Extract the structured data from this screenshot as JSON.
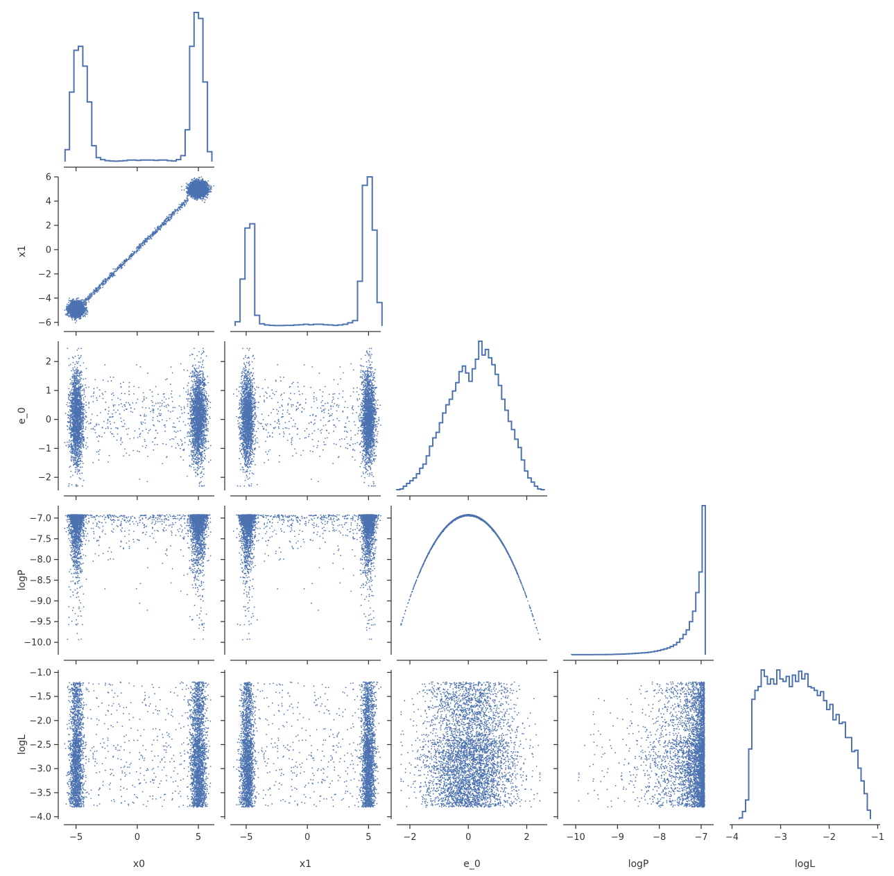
{
  "chart_data": {
    "type": "corner-plot",
    "variables": [
      "x0",
      "x1",
      "e_0",
      "logP",
      "logL"
    ],
    "color": "#4c72b0",
    "axes": {
      "x0": {
        "range": [
          -6.0,
          6.3
        ],
        "ticks": [
          -5,
          0,
          5
        ],
        "tick_labels": [
          "−5",
          "0",
          "5"
        ]
      },
      "x1": {
        "range": [
          -6.3,
          6.0
        ],
        "ticks": [
          -5,
          0,
          5
        ],
        "tick_labels": [
          "−5",
          "0",
          "5"
        ],
        "y_ticks": [
          -6,
          -4,
          -2,
          0,
          2,
          4,
          6
        ],
        "y_tick_labels": [
          "−6",
          "−4",
          "−2",
          "0",
          "2",
          "4",
          "6"
        ]
      },
      "e_0": {
        "range": [
          -2.45,
          2.7
        ],
        "ticks": [
          -2,
          0,
          2
        ],
        "tick_labels": [
          "−2",
          "0",
          "2"
        ],
        "y_ticks": [
          -2,
          -1,
          0,
          1,
          2
        ],
        "y_tick_labels": [
          "−2",
          "−1",
          "0",
          "1",
          "2"
        ]
      },
      "logP": {
        "range": [
          -10.3,
          -6.7
        ],
        "ticks": [
          -10,
          -9,
          -8,
          -7
        ],
        "tick_labels": [
          "−10",
          "−9",
          "−8",
          "−7"
        ],
        "y_ticks": [
          -10.0,
          -9.5,
          -9.0,
          -8.5,
          -8.0,
          -7.5,
          -7.0
        ],
        "y_tick_labels": [
          "−10.0",
          "−9.5",
          "−9.0",
          "−8.5",
          "−8.0",
          "−7.5",
          "−7.0"
        ]
      },
      "logL": {
        "range": [
          -4.05,
          -0.95
        ],
        "ticks": [
          -4,
          -3,
          -2,
          -1
        ],
        "tick_labels": [
          "−4",
          "−3",
          "−2",
          "−1"
        ],
        "y_ticks": [
          -4.0,
          -3.5,
          -3.0,
          -2.5,
          -2.0,
          -1.5,
          -1.0
        ],
        "y_tick_labels": [
          "−4.0",
          "−3.5",
          "−3.0",
          "−2.5",
          "−2.0",
          "−1.5",
          "−1.0"
        ]
      }
    },
    "histograms": {
      "x0": {
        "bin_edges": [
          -5.9,
          6.1
        ],
        "counts": [
          6,
          35,
          56,
          58,
          48,
          30,
          8,
          2,
          1,
          0.5,
          0.3,
          0.2,
          0.3,
          0.5,
          0.8,
          0.8,
          0.6,
          0.8,
          0.8,
          0.8,
          0.6,
          0.8,
          0.8,
          0.5,
          0.3,
          1,
          3,
          16,
          58,
          75,
          72,
          40,
          5
        ]
      },
      "x1": {
        "bin_edges": [
          -5.9,
          6.1
        ],
        "counts": [
          2,
          22,
          46,
          48,
          5,
          1,
          0.5,
          0.3,
          0.2,
          0.2,
          0.3,
          0.3,
          0.5,
          0.6,
          0.8,
          0.6,
          0.8,
          0.8,
          0.6,
          0.5,
          0.3,
          0.5,
          0.8,
          1.5,
          2.5,
          21,
          66,
          70,
          45,
          11
        ]
      },
      "e_0": {
        "bin_edges": [
          -2.45,
          2.6
        ],
        "counts": [
          0.5,
          1,
          3,
          5,
          7,
          9,
          12,
          16,
          19,
          25,
          32,
          38,
          42,
          49,
          56,
          62,
          66,
          72,
          78,
          86,
          90,
          85,
          79,
          88,
          95,
          108,
          98,
          102,
          96,
          91,
          84,
          76,
          66,
          58,
          50,
          44,
          37,
          31,
          22,
          14,
          9,
          6,
          3,
          1,
          0.5
        ]
      },
      "logP": {
        "bin_edges": [
          -10.1,
          -6.9
        ],
        "counts": [
          0.3,
          0.3,
          0.3,
          0.5,
          0.5,
          0.5,
          0.5,
          0.8,
          0.8,
          1,
          1,
          1.5,
          1.5,
          2,
          2.5,
          3,
          3.5,
          4,
          5,
          6,
          7,
          8,
          9,
          10,
          12,
          14,
          17,
          20,
          24,
          28,
          33,
          40,
          48,
          60,
          78,
          98,
          120,
          160,
          210,
          300,
          400,
          720
        ]
      },
      "logL": {
        "bin_edges": [
          -3.85,
          -1.15
        ],
        "counts": [
          1,
          6,
          15,
          55,
          94,
          101,
          104,
          117,
          112,
          106,
          110,
          106,
          117,
          110,
          108,
          112,
          104,
          113,
          108,
          116,
          110,
          114,
          104,
          103,
          101,
          97,
          100,
          93,
          86,
          90,
          78,
          82,
          75,
          76,
          64,
          64,
          53,
          54,
          40,
          30,
          20,
          7
        ]
      }
    },
    "scatter_samples": 9000
  },
  "labels": {
    "x_axis": [
      "x0",
      "x1",
      "e_0",
      "logP",
      "logL"
    ],
    "y_axis": [
      "x1",
      "e_0",
      "logP",
      "logL"
    ]
  }
}
